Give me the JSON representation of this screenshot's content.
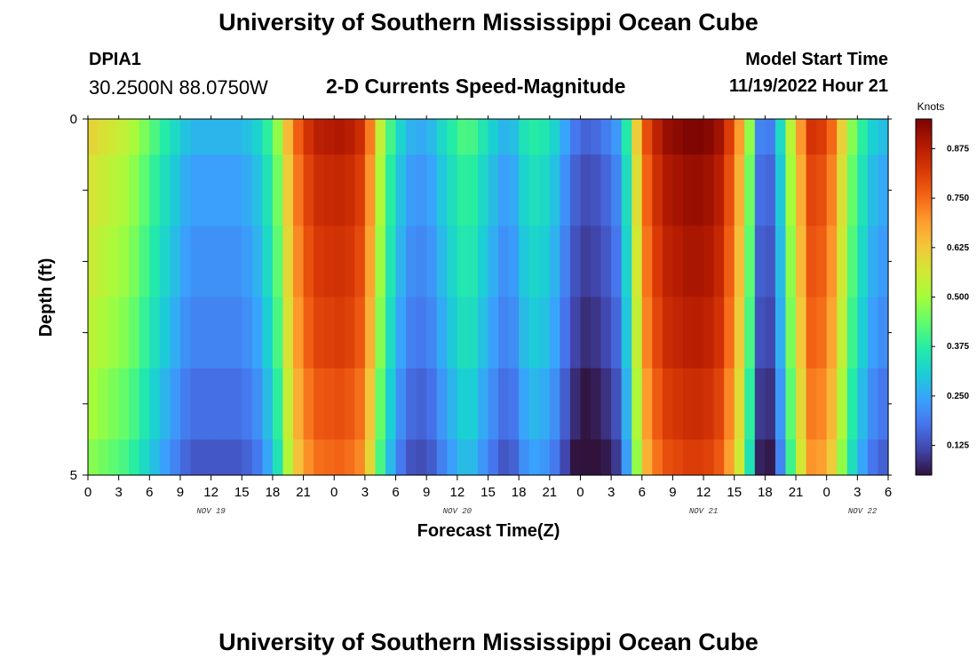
{
  "header": {
    "title": "University of Southern Mississippi Ocean Cube",
    "station_id": "DPIA1",
    "coordinates": "30.2500N  88.0750W",
    "chart_title": "2-D Currents Speed-Magnitude",
    "start_label": "Model Start Time",
    "start_value": "11/19/2022 Hour 21"
  },
  "footer": {
    "title": "University of Southern Mississippi Ocean Cube"
  },
  "colors": {
    "scale": [
      "#30123b",
      "#4145ab",
      "#4675ed",
      "#39a2fc",
      "#1bcfd4",
      "#24eca6",
      "#61fc6c",
      "#a4fc3b",
      "#d1e834",
      "#f3c63a",
      "#fe9b2d",
      "#f36315",
      "#d93806",
      "#b11901",
      "#7a0403"
    ]
  },
  "chart_data": {
    "type": "heatmap",
    "title": "2-D Currents Speed-Magnitude",
    "xlabel": "Forecast Time(Z)",
    "ylabel": "Depth (ft)",
    "colorbar_label": "Knots",
    "colorbar_ticks": [
      "0.125",
      "0.250",
      "0.375",
      "0.500",
      "0.625",
      "0.750",
      "0.875"
    ],
    "colorbar_range": [
      0.05,
      0.95
    ],
    "y_ticks": [
      "0",
      "5"
    ],
    "y_range": [
      0,
      5
    ],
    "x_ticks": [
      "0",
      "3",
      "6",
      "9",
      "12",
      "15",
      "18",
      "21",
      "0",
      "3",
      "6",
      "9",
      "12",
      "15",
      "18",
      "21",
      "0",
      "3",
      "6",
      "9",
      "12",
      "15",
      "18",
      "21",
      "0",
      "3",
      "6"
    ],
    "x_range_hours": [
      0,
      78
    ],
    "date_labels": [
      {
        "label": "NOV 19",
        "hour": 12
      },
      {
        "label": "NOV 20",
        "hour": 36
      },
      {
        "label": "NOV 21",
        "hour": 60
      },
      {
        "label": "NOV 22",
        "hour": 75.5
      }
    ],
    "depth_layers": [
      {
        "from": 0,
        "to": 0.5,
        "mod": 0.03
      },
      {
        "from": 0.5,
        "to": 1.5,
        "mod": 0.0
      },
      {
        "from": 1.5,
        "to": 2.5,
        "mod": -0.02
      },
      {
        "from": 2.5,
        "to": 3.5,
        "mod": -0.04
      },
      {
        "from": 3.5,
        "to": 4.5,
        "mod": -0.07
      },
      {
        "from": 4.5,
        "to": 5,
        "mod": -0.1
      }
    ],
    "speed_profile": [
      {
        "hour": 0,
        "value": 0.58
      },
      {
        "hour": 4,
        "value": 0.5
      },
      {
        "hour": 7,
        "value": 0.36
      },
      {
        "hour": 10,
        "value": 0.24
      },
      {
        "hour": 15,
        "value": 0.24
      },
      {
        "hour": 17,
        "value": 0.3
      },
      {
        "hour": 18.5,
        "value": 0.45
      },
      {
        "hour": 20,
        "value": 0.7
      },
      {
        "hour": 22,
        "value": 0.84
      },
      {
        "hour": 25,
        "value": 0.86
      },
      {
        "hour": 27,
        "value": 0.8
      },
      {
        "hour": 28,
        "value": 0.6
      },
      {
        "hour": 29,
        "value": 0.42
      },
      {
        "hour": 31,
        "value": 0.24
      },
      {
        "hour": 33,
        "value": 0.22
      },
      {
        "hour": 35,
        "value": 0.32
      },
      {
        "hour": 37,
        "value": 0.4
      },
      {
        "hour": 39,
        "value": 0.3
      },
      {
        "hour": 41,
        "value": 0.22
      },
      {
        "hour": 43,
        "value": 0.35
      },
      {
        "hour": 45,
        "value": 0.32
      },
      {
        "hour": 46,
        "value": 0.25
      },
      {
        "hour": 48,
        "value": 0.12
      },
      {
        "hour": 50,
        "value": 0.14
      },
      {
        "hour": 52,
        "value": 0.22
      },
      {
        "hour": 53,
        "value": 0.45
      },
      {
        "hour": 54,
        "value": 0.72
      },
      {
        "hour": 56,
        "value": 0.88
      },
      {
        "hour": 59,
        "value": 0.92
      },
      {
        "hour": 61,
        "value": 0.9
      },
      {
        "hour": 62,
        "value": 0.85
      },
      {
        "hour": 63.5,
        "value": 0.66
      },
      {
        "hour": 64.5,
        "value": 0.45
      },
      {
        "hour": 65,
        "value": 0.22
      },
      {
        "hour": 66,
        "value": 0.12
      },
      {
        "hour": 67,
        "value": 0.2
      },
      {
        "hour": 68,
        "value": 0.4
      },
      {
        "hour": 69,
        "value": 0.6
      },
      {
        "hour": 70.5,
        "value": 0.8
      },
      {
        "hour": 72,
        "value": 0.78
      },
      {
        "hour": 73,
        "value": 0.66
      },
      {
        "hour": 74,
        "value": 0.5
      },
      {
        "hour": 75,
        "value": 0.38
      },
      {
        "hour": 76.5,
        "value": 0.28
      },
      {
        "hour": 78,
        "value": 0.24
      }
    ],
    "grid": false,
    "legend": "right"
  }
}
